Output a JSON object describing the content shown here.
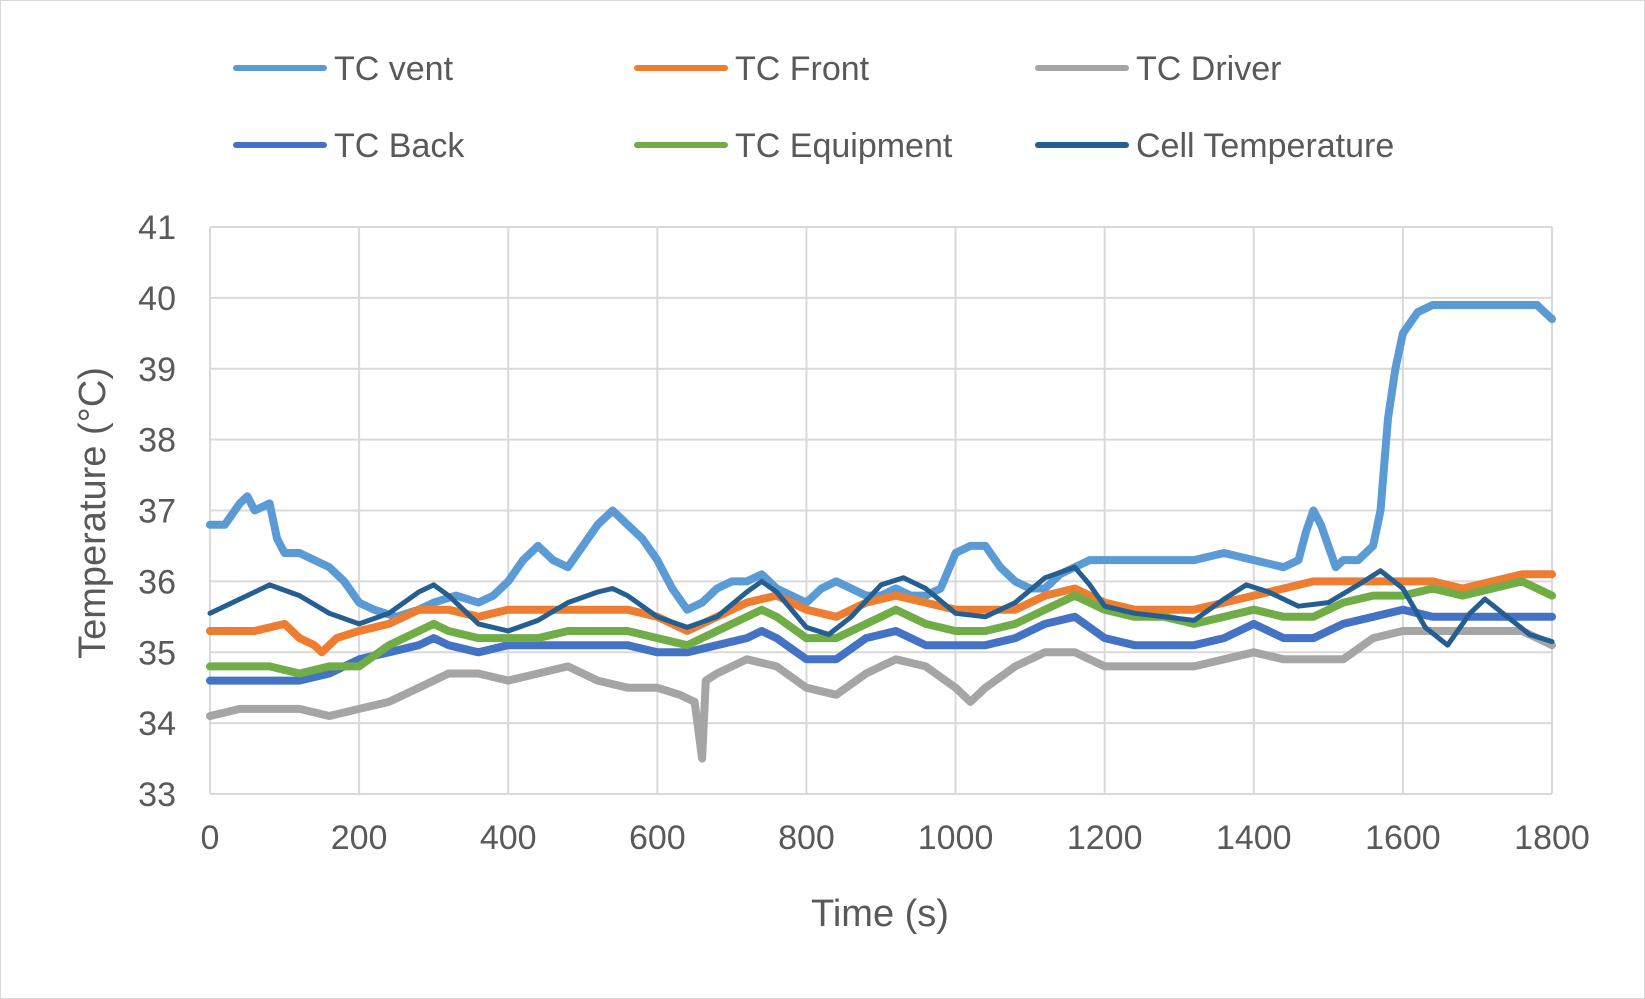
{
  "chart_data": {
    "type": "line",
    "title": "",
    "xlabel": "Time (s)",
    "ylabel": "Temperature (°C)",
    "xlim": [
      0,
      1800
    ],
    "ylim": [
      33,
      41
    ],
    "xticks": [
      0,
      200,
      400,
      600,
      800,
      1000,
      1200,
      1400,
      1600,
      1800
    ],
    "yticks": [
      33,
      34,
      35,
      36,
      37,
      38,
      39,
      40,
      41
    ],
    "grid": true,
    "legend_position": "top",
    "series": [
      {
        "name": "TC vent",
        "color": "#5b9bd5",
        "x": [
          0,
          20,
          40,
          50,
          60,
          80,
          90,
          100,
          120,
          140,
          160,
          180,
          200,
          220,
          250,
          280,
          300,
          330,
          360,
          380,
          400,
          420,
          440,
          460,
          480,
          500,
          520,
          540,
          560,
          580,
          600,
          620,
          640,
          660,
          680,
          700,
          720,
          740,
          760,
          780,
          800,
          820,
          840,
          860,
          880,
          900,
          920,
          940,
          960,
          980,
          1000,
          1020,
          1040,
          1060,
          1080,
          1100,
          1120,
          1140,
          1160,
          1180,
          1200,
          1240,
          1280,
          1320,
          1360,
          1400,
          1440,
          1460,
          1470,
          1480,
          1490,
          1500,
          1510,
          1520,
          1540,
          1560,
          1570,
          1580,
          1590,
          1600,
          1620,
          1640,
          1660,
          1700,
          1760,
          1780,
          1790,
          1800
        ],
        "y": [
          36.8,
          36.8,
          37.1,
          37.2,
          37.0,
          37.1,
          36.6,
          36.4,
          36.4,
          36.3,
          36.2,
          36.0,
          35.7,
          35.6,
          35.5,
          35.6,
          35.7,
          35.8,
          35.7,
          35.8,
          36.0,
          36.3,
          36.5,
          36.3,
          36.2,
          36.5,
          36.8,
          37.0,
          36.8,
          36.6,
          36.3,
          35.9,
          35.6,
          35.7,
          35.9,
          36.0,
          36.0,
          36.1,
          35.9,
          35.8,
          35.7,
          35.9,
          36.0,
          35.9,
          35.8,
          35.8,
          35.9,
          35.8,
          35.8,
          35.9,
          36.4,
          36.5,
          36.5,
          36.2,
          36.0,
          35.9,
          35.9,
          36.1,
          36.2,
          36.3,
          36.3,
          36.3,
          36.3,
          36.3,
          36.4,
          36.3,
          36.2,
          36.3,
          36.7,
          37.0,
          36.8,
          36.5,
          36.2,
          36.3,
          36.3,
          36.5,
          37.0,
          38.3,
          39.0,
          39.5,
          39.8,
          39.9,
          39.9,
          39.9,
          39.9,
          39.9,
          39.8,
          39.7
        ]
      },
      {
        "name": "TC Front",
        "color": "#ed7d31",
        "x": [
          0,
          30,
          60,
          100,
          120,
          140,
          150,
          170,
          200,
          240,
          280,
          320,
          360,
          400,
          440,
          480,
          520,
          560,
          600,
          640,
          680,
          720,
          760,
          800,
          840,
          880,
          920,
          960,
          1000,
          1040,
          1080,
          1120,
          1160,
          1200,
          1240,
          1280,
          1320,
          1360,
          1400,
          1440,
          1480,
          1520,
          1560,
          1600,
          1640,
          1680,
          1720,
          1760,
          1800
        ],
        "y": [
          35.3,
          35.3,
          35.3,
          35.4,
          35.2,
          35.1,
          35.0,
          35.2,
          35.3,
          35.4,
          35.6,
          35.6,
          35.5,
          35.6,
          35.6,
          35.6,
          35.6,
          35.6,
          35.5,
          35.3,
          35.5,
          35.7,
          35.8,
          35.6,
          35.5,
          35.7,
          35.8,
          35.7,
          35.6,
          35.6,
          35.6,
          35.8,
          35.9,
          35.7,
          35.6,
          35.6,
          35.6,
          35.7,
          35.8,
          35.9,
          36.0,
          36.0,
          36.0,
          36.0,
          36.0,
          35.9,
          36.0,
          36.1,
          36.1
        ]
      },
      {
        "name": "TC Driver",
        "color": "#a5a5a5",
        "x": [
          0,
          40,
          80,
          120,
          160,
          200,
          240,
          280,
          320,
          360,
          400,
          440,
          480,
          520,
          560,
          600,
          630,
          650,
          660,
          665,
          680,
          720,
          760,
          800,
          840,
          880,
          920,
          960,
          1000,
          1020,
          1040,
          1080,
          1120,
          1160,
          1200,
          1240,
          1280,
          1320,
          1360,
          1400,
          1440,
          1480,
          1520,
          1560,
          1600,
          1640,
          1680,
          1720,
          1760,
          1800
        ],
        "y": [
          34.1,
          34.2,
          34.2,
          34.2,
          34.1,
          34.2,
          34.3,
          34.5,
          34.7,
          34.7,
          34.6,
          34.7,
          34.8,
          34.6,
          34.5,
          34.5,
          34.4,
          34.3,
          33.5,
          34.6,
          34.7,
          34.9,
          34.8,
          34.5,
          34.4,
          34.7,
          34.9,
          34.8,
          34.5,
          34.3,
          34.5,
          34.8,
          35.0,
          35.0,
          34.8,
          34.8,
          34.8,
          34.8,
          34.9,
          35.0,
          34.9,
          34.9,
          34.9,
          35.2,
          35.3,
          35.3,
          35.3,
          35.3,
          35.3,
          35.1
        ]
      },
      {
        "name": "TC Back",
        "color": "#4472c4",
        "x": [
          0,
          40,
          80,
          120,
          160,
          200,
          240,
          280,
          300,
          320,
          360,
          400,
          440,
          480,
          520,
          560,
          600,
          640,
          680,
          720,
          740,
          760,
          800,
          840,
          880,
          920,
          960,
          1000,
          1040,
          1080,
          1120,
          1160,
          1200,
          1240,
          1280,
          1320,
          1360,
          1400,
          1440,
          1480,
          1520,
          1560,
          1600,
          1640,
          1680,
          1720,
          1760,
          1800
        ],
        "y": [
          34.6,
          34.6,
          34.6,
          34.6,
          34.7,
          34.9,
          35.0,
          35.1,
          35.2,
          35.1,
          35.0,
          35.1,
          35.1,
          35.1,
          35.1,
          35.1,
          35.0,
          35.0,
          35.1,
          35.2,
          35.3,
          35.2,
          34.9,
          34.9,
          35.2,
          35.3,
          35.1,
          35.1,
          35.1,
          35.2,
          35.4,
          35.5,
          35.2,
          35.1,
          35.1,
          35.1,
          35.2,
          35.4,
          35.2,
          35.2,
          35.4,
          35.5,
          35.6,
          35.5,
          35.5,
          35.5,
          35.5,
          35.5
        ]
      },
      {
        "name": "TC Equipment",
        "color": "#70ad47",
        "x": [
          0,
          40,
          80,
          120,
          160,
          200,
          240,
          280,
          300,
          320,
          360,
          400,
          440,
          480,
          520,
          560,
          600,
          640,
          680,
          720,
          740,
          760,
          800,
          840,
          880,
          920,
          960,
          1000,
          1040,
          1080,
          1120,
          1160,
          1200,
          1240,
          1280,
          1320,
          1360,
          1400,
          1440,
          1480,
          1520,
          1560,
          1600,
          1640,
          1680,
          1720,
          1760,
          1800
        ],
        "y": [
          34.8,
          34.8,
          34.8,
          34.7,
          34.8,
          34.8,
          35.1,
          35.3,
          35.4,
          35.3,
          35.2,
          35.2,
          35.2,
          35.3,
          35.3,
          35.3,
          35.2,
          35.1,
          35.3,
          35.5,
          35.6,
          35.5,
          35.2,
          35.2,
          35.4,
          35.6,
          35.4,
          35.3,
          35.3,
          35.4,
          35.6,
          35.8,
          35.6,
          35.5,
          35.5,
          35.4,
          35.5,
          35.6,
          35.5,
          35.5,
          35.7,
          35.8,
          35.8,
          35.9,
          35.8,
          35.9,
          36.0,
          35.8
        ]
      },
      {
        "name": "Cell Temperature",
        "color": "#255e91",
        "x": [
          0,
          40,
          80,
          120,
          160,
          200,
          240,
          280,
          300,
          320,
          360,
          400,
          440,
          480,
          520,
          540,
          560,
          600,
          640,
          680,
          720,
          740,
          760,
          800,
          830,
          860,
          900,
          930,
          960,
          1000,
          1040,
          1080,
          1120,
          1160,
          1180,
          1200,
          1240,
          1280,
          1320,
          1360,
          1390,
          1420,
          1460,
          1500,
          1540,
          1570,
          1600,
          1630,
          1660,
          1690,
          1710,
          1740,
          1770,
          1800
        ],
        "y": [
          35.55,
          35.75,
          35.95,
          35.8,
          35.55,
          35.4,
          35.55,
          35.85,
          35.95,
          35.8,
          35.4,
          35.3,
          35.45,
          35.7,
          35.85,
          35.9,
          35.8,
          35.5,
          35.35,
          35.5,
          35.85,
          36.0,
          35.85,
          35.35,
          35.25,
          35.5,
          35.95,
          36.05,
          35.9,
          35.55,
          35.5,
          35.7,
          36.05,
          36.2,
          35.95,
          35.65,
          35.55,
          35.5,
          35.45,
          35.75,
          35.95,
          35.85,
          35.65,
          35.7,
          35.95,
          36.15,
          35.9,
          35.35,
          35.1,
          35.55,
          35.75,
          35.5,
          35.25,
          35.15
        ]
      }
    ]
  }
}
